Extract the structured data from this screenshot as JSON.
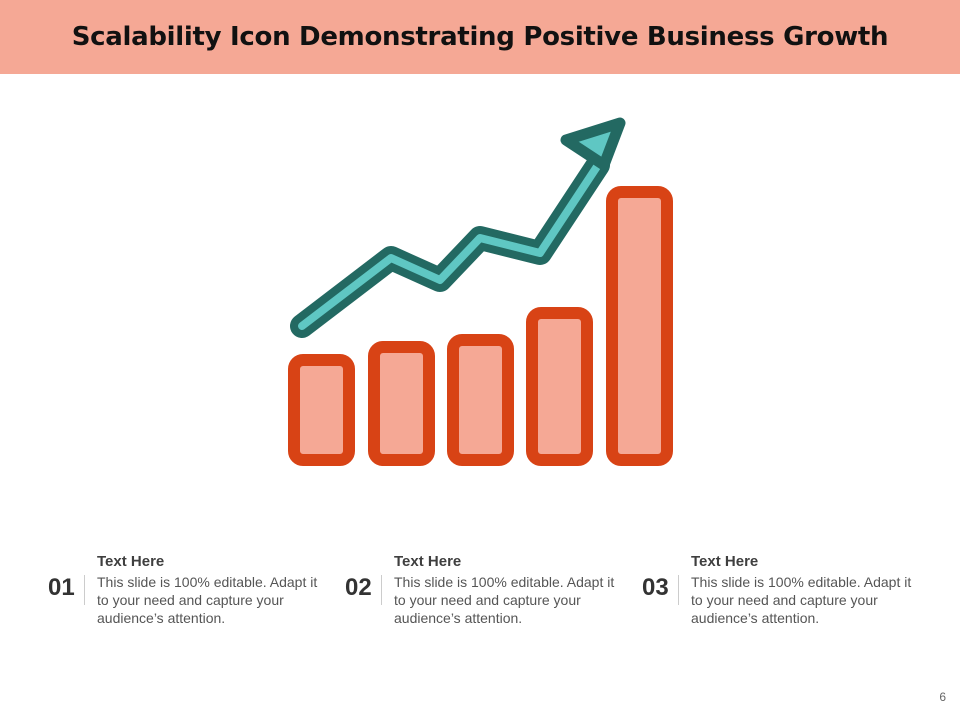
{
  "slide": {
    "title": "Scalability Icon Demonstrating Positive Business Growth",
    "page_number": "6"
  },
  "icon": {
    "name": "growth-chart-icon",
    "bar_fill": "#F5A895",
    "bar_stroke": "#D84315",
    "arrow_fill": "#5FC7C3",
    "arrow_stroke": "#236962",
    "header_color": "#F5A895"
  },
  "items": [
    {
      "number": "01",
      "heading": "Text Here",
      "text": "This slide is 100% editable. Adapt it to your need and capture your audience’s attention."
    },
    {
      "number": "02",
      "heading": "Text Here",
      "text": "This slide is 100% editable. Adapt it to your need and capture your audience’s attention."
    },
    {
      "number": "03",
      "heading": "Text Here",
      "text": "This slide is 100% editable. Adapt it to your need and capture your audience’s attention."
    }
  ]
}
